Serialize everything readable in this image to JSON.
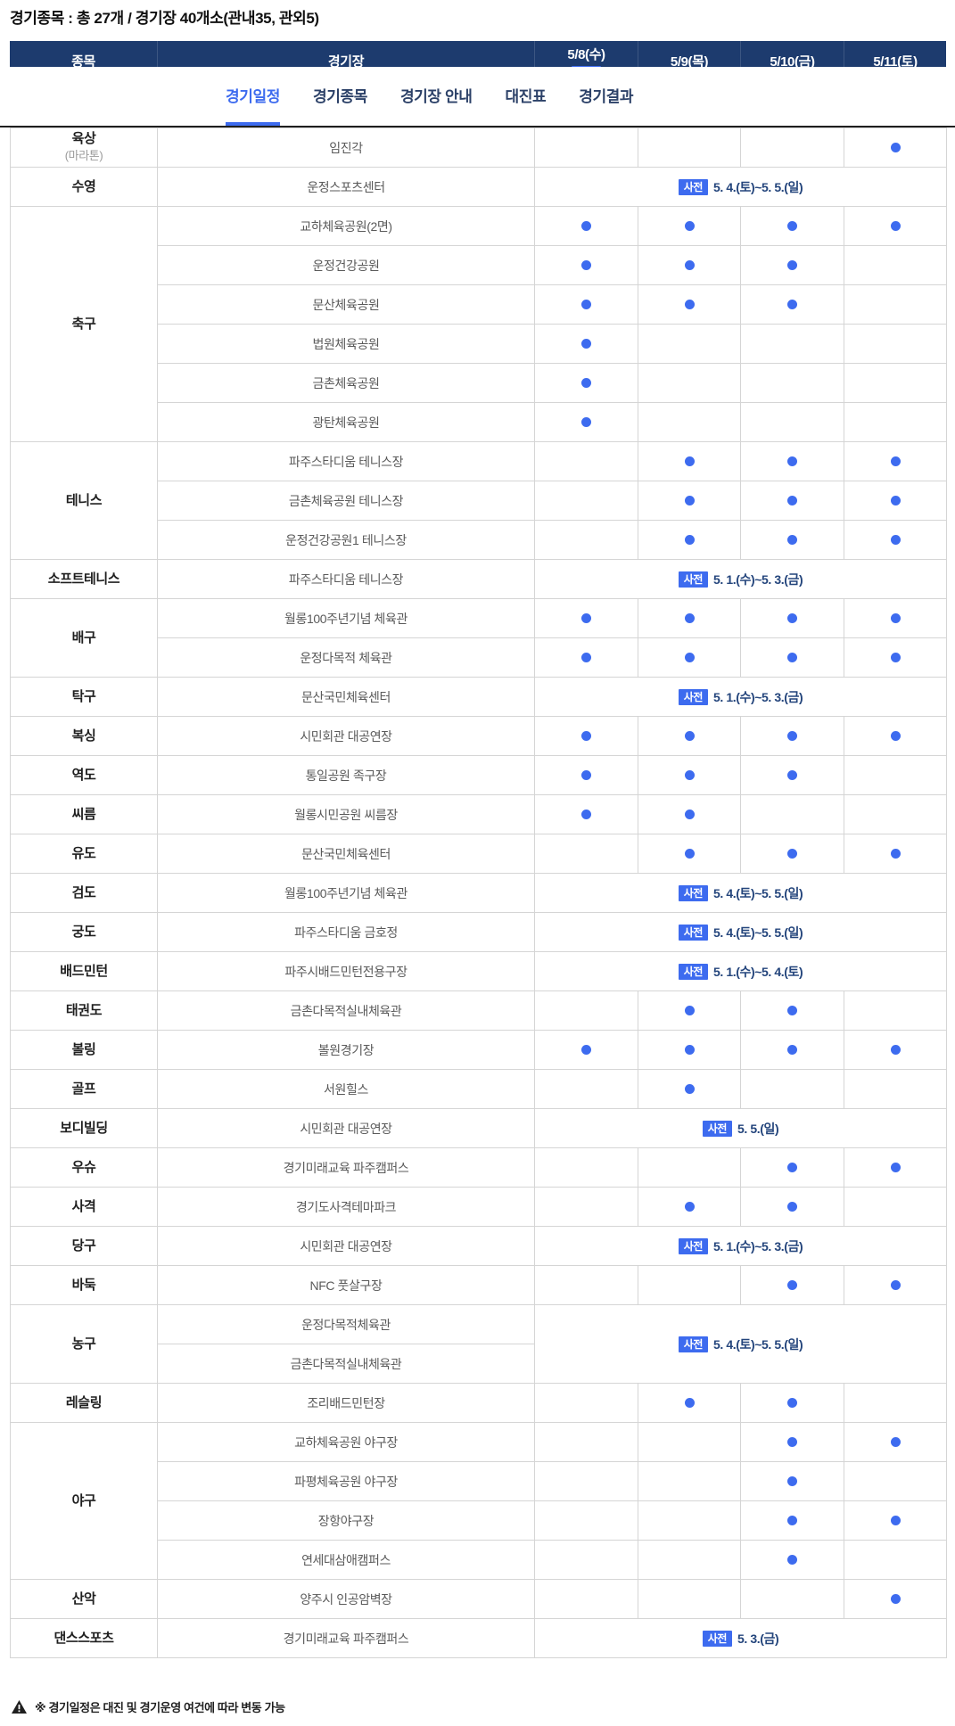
{
  "page": {
    "title": "경기종목 : 총 27개 / 경기장 40개소(관내35, 관외5)"
  },
  "nav": {
    "items": [
      {
        "label": "경기일정",
        "active": true
      },
      {
        "label": "경기종목",
        "active": false
      },
      {
        "label": "경기장 안내",
        "active": false
      },
      {
        "label": "대진표",
        "active": false
      },
      {
        "label": "경기결과",
        "active": false
      }
    ]
  },
  "table": {
    "columns": [
      "종목",
      "경기장",
      "5/8(수)",
      "5/9(목)",
      "5/10(금)",
      "5/11(토)"
    ],
    "header_badge": "사전",
    "advance_badge_label": "사전",
    "groups": [
      {
        "sport": "육상",
        "sport_sub": "(마라톤)",
        "rows": [
          {
            "venue": "임진각",
            "days": [
              0,
              0,
              0,
              1
            ]
          }
        ]
      },
      {
        "sport": "수영",
        "rows": [
          {
            "venue": "운정스포츠센터",
            "advance": "5. 4.(토)~5. 5.(일)"
          }
        ]
      },
      {
        "sport": "축구",
        "rows": [
          {
            "venue": "교하체육공원(2면)",
            "days": [
              1,
              1,
              1,
              1
            ]
          },
          {
            "venue": "운정건강공원",
            "days": [
              1,
              1,
              1,
              0
            ]
          },
          {
            "venue": "문산체육공원",
            "days": [
              1,
              1,
              1,
              0
            ]
          },
          {
            "venue": "법원체육공원",
            "days": [
              1,
              0,
              0,
              0
            ]
          },
          {
            "venue": "금촌체육공원",
            "days": [
              1,
              0,
              0,
              0
            ]
          },
          {
            "venue": "광탄체육공원",
            "days": [
              1,
              0,
              0,
              0
            ]
          }
        ]
      },
      {
        "sport": "테니스",
        "rows": [
          {
            "venue": "파주스타디움 테니스장",
            "days": [
              0,
              1,
              1,
              1
            ]
          },
          {
            "venue": "금촌체육공원 테니스장",
            "days": [
              0,
              1,
              1,
              1
            ]
          },
          {
            "venue": "운정건강공원1 테니스장",
            "days": [
              0,
              1,
              1,
              1
            ]
          }
        ]
      },
      {
        "sport": "소프트테니스",
        "rows": [
          {
            "venue": "파주스타디움 테니스장",
            "advance": "5. 1.(수)~5. 3.(금)"
          }
        ]
      },
      {
        "sport": "배구",
        "rows": [
          {
            "venue": "월롱100주년기념 체육관",
            "days": [
              1,
              1,
              1,
              1
            ]
          },
          {
            "venue": "운정다목적 체육관",
            "days": [
              1,
              1,
              1,
              1
            ]
          }
        ]
      },
      {
        "sport": "탁구",
        "rows": [
          {
            "venue": "문산국민체육센터",
            "advance": "5. 1.(수)~5. 3.(금)"
          }
        ]
      },
      {
        "sport": "복싱",
        "rows": [
          {
            "venue": "시민회관 대공연장",
            "days": [
              1,
              1,
              1,
              1
            ]
          }
        ]
      },
      {
        "sport": "역도",
        "rows": [
          {
            "venue": "통일공원 족구장",
            "days": [
              1,
              1,
              1,
              0
            ]
          }
        ]
      },
      {
        "sport": "씨름",
        "rows": [
          {
            "venue": "월롱시민공원 씨름장",
            "days": [
              1,
              1,
              0,
              0
            ]
          }
        ]
      },
      {
        "sport": "유도",
        "rows": [
          {
            "venue": "문산국민체육센터",
            "days": [
              0,
              1,
              1,
              1
            ]
          }
        ]
      },
      {
        "sport": "검도",
        "rows": [
          {
            "venue": "월롱100주년기념 체육관",
            "advance": "5. 4.(토)~5. 5.(일)"
          }
        ]
      },
      {
        "sport": "궁도",
        "rows": [
          {
            "venue": "파주스타디움 금호정",
            "advance": "5. 4.(토)~5. 5.(일)"
          }
        ]
      },
      {
        "sport": "배드민턴",
        "rows": [
          {
            "venue": "파주시배드민턴전용구장",
            "advance": "5. 1.(수)~5. 4.(토)"
          }
        ]
      },
      {
        "sport": "태권도",
        "rows": [
          {
            "venue": "금촌다목적실내체육관",
            "days": [
              0,
              1,
              1,
              0
            ]
          }
        ]
      },
      {
        "sport": "볼링",
        "rows": [
          {
            "venue": "볼원경기장",
            "days": [
              1,
              1,
              1,
              1
            ]
          }
        ]
      },
      {
        "sport": "골프",
        "rows": [
          {
            "venue": "서원힐스",
            "days": [
              0,
              1,
              0,
              0
            ]
          }
        ]
      },
      {
        "sport": "보디빌딩",
        "rows": [
          {
            "venue": "시민회관 대공연장",
            "advance": "5. 5.(일)"
          }
        ]
      },
      {
        "sport": "우슈",
        "rows": [
          {
            "venue": "경기미래교육 파주캠퍼스",
            "days": [
              0,
              0,
              1,
              1
            ]
          }
        ]
      },
      {
        "sport": "사격",
        "rows": [
          {
            "venue": "경기도사격테마파크",
            "days": [
              0,
              1,
              1,
              0
            ]
          }
        ]
      },
      {
        "sport": "당구",
        "rows": [
          {
            "venue": "시민회관 대공연장",
            "advance": "5. 1.(수)~5. 3.(금)"
          }
        ]
      },
      {
        "sport": "바둑",
        "rows": [
          {
            "venue": "NFC 풋살구장",
            "days": [
              0,
              0,
              1,
              1
            ]
          }
        ]
      },
      {
        "sport": "농구",
        "advance_merged": "5. 4.(토)~5. 5.(일)",
        "rows": [
          {
            "venue": "운정다목적체육관"
          },
          {
            "venue": "금촌다목적실내체육관"
          }
        ]
      },
      {
        "sport": "레슬링",
        "rows": [
          {
            "venue": "조리배드민턴장",
            "days": [
              0,
              1,
              1,
              0
            ]
          }
        ]
      },
      {
        "sport": "야구",
        "rows": [
          {
            "venue": "교하체육공원 야구장",
            "days": [
              0,
              0,
              1,
              1
            ]
          },
          {
            "venue": "파평체육공원 야구장",
            "days": [
              0,
              0,
              1,
              0
            ]
          },
          {
            "venue": "장항야구장",
            "days": [
              0,
              0,
              1,
              1
            ]
          },
          {
            "venue": "연세대삼애캠퍼스",
            "days": [
              0,
              0,
              1,
              0
            ]
          }
        ]
      },
      {
        "sport": "산악",
        "rows": [
          {
            "venue": "양주시 인공암벽장",
            "days": [
              0,
              0,
              0,
              1
            ]
          }
        ]
      },
      {
        "sport": "댄스스포츠",
        "rows": [
          {
            "venue": "경기미래교육 파주캠퍼스",
            "advance": "5. 3.(금)"
          }
        ]
      }
    ]
  },
  "footer": {
    "note": "※ 경기일정은 대진 및 경기운영 여건에 따라 변동 가능"
  },
  "colors": {
    "header_bg": "#1d3b6e",
    "accent_blue": "#3d6bef"
  }
}
